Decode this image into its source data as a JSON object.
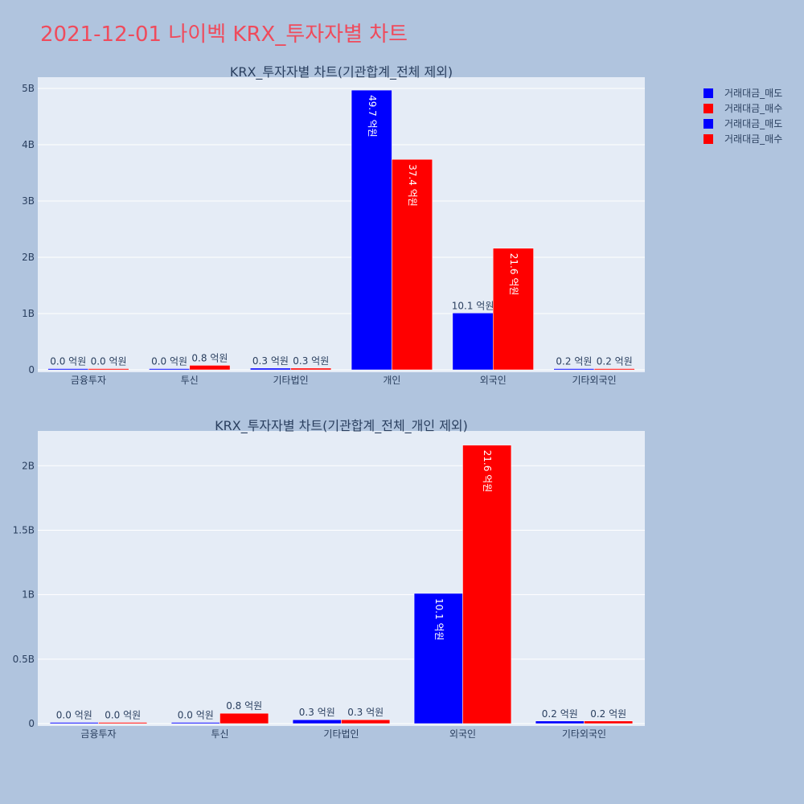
{
  "page": {
    "title": "2021-12-01 나이벡 KRX_투자자별 차트"
  },
  "legend": {
    "items": [
      {
        "label": "거래대금_매도",
        "color": "#0000ff"
      },
      {
        "label": "거래대금_매수",
        "color": "#ff0000"
      },
      {
        "label": "거래대금_매도",
        "color": "#0000ff"
      },
      {
        "label": "거래대금_매수",
        "color": "#ff0000"
      }
    ]
  },
  "chart_data": [
    {
      "type": "bar",
      "title": "KRX_투자자별 차트(기관합계_전체 제외)",
      "categories": [
        "금융투자",
        "투신",
        "기타법인",
        "개인",
        "외국인",
        "기타외국인"
      ],
      "ylim": [
        0,
        5.2
      ],
      "yticks": [
        0,
        1,
        2,
        3,
        4,
        5
      ],
      "ytick_labels": [
        "0",
        "1B",
        "2B",
        "3B",
        "4B",
        "5B"
      ],
      "grid": true,
      "legend_position": "top-right",
      "series": [
        {
          "name": "거래대금_매도",
          "color": "#0000ff",
          "values": [
            0.0,
            0.0,
            0.03,
            4.97,
            1.01,
            0.02
          ],
          "labels": [
            "0.0 억원",
            "0.0 억원",
            "0.3 억원",
            "49.7 억원",
            "10.1 억원",
            "0.2 억원"
          ]
        },
        {
          "name": "거래대금_매수",
          "color": "#ff0000",
          "values": [
            0.0,
            0.08,
            0.03,
            3.74,
            2.16,
            0.02
          ],
          "labels": [
            "0.0 억원",
            "0.8 억원",
            "0.3 억원",
            "37.4 억원",
            "21.6 억원",
            "0.2 억원"
          ]
        }
      ]
    },
    {
      "type": "bar",
      "title": "KRX_투자자별 차트(기관합계_전체_개인 제외)",
      "categories": [
        "금융투자",
        "투신",
        "기타법인",
        "외국인",
        "기타외국인"
      ],
      "ylim": [
        0,
        2.27
      ],
      "yticks": [
        0,
        0.5,
        1,
        1.5,
        2
      ],
      "ytick_labels": [
        "0",
        "0.5B",
        "1B",
        "1.5B",
        "2B"
      ],
      "grid": true,
      "legend_position": "top-right",
      "series": [
        {
          "name": "거래대금_매도",
          "color": "#0000ff",
          "values": [
            0.0,
            0.0,
            0.03,
            1.01,
            0.02
          ],
          "labels": [
            "0.0 억원",
            "0.0 억원",
            "0.3 억원",
            "10.1 억원",
            "0.2 억원"
          ]
        },
        {
          "name": "거래대금_매수",
          "color": "#ff0000",
          "values": [
            0.0,
            0.08,
            0.03,
            2.16,
            0.02
          ],
          "labels": [
            "0.0 억원",
            "0.8 억원",
            "0.3 억원",
            "21.6 억원",
            "0.2 억원"
          ]
        }
      ]
    }
  ]
}
